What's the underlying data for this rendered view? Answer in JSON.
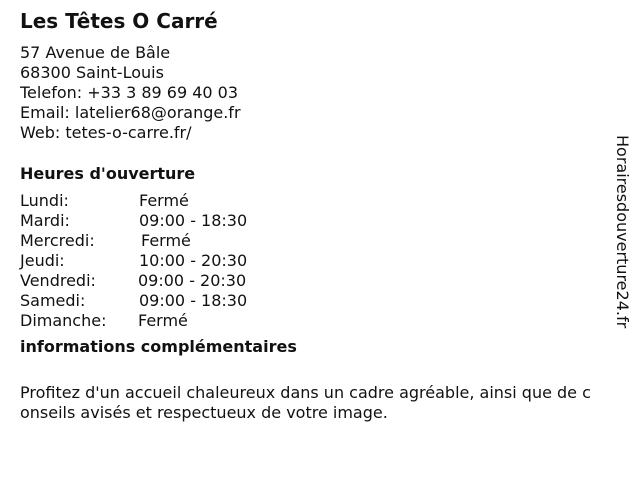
{
  "business": {
    "name": "Les Têtes O Carré",
    "address_line1": "57 Avenue de Bâle",
    "address_line2": "68300 Saint-Louis",
    "phone": "Telefon: +33 3 89 69 40 03",
    "email": "Email: latelier68@orange.fr",
    "web": "Web: tetes-o-carre.fr/"
  },
  "hours": {
    "heading": "Heures d'ouverture",
    "days": [
      {
        "day": "Lundi:",
        "time": "Fermé"
      },
      {
        "day": "Mardi:",
        "time": "09:00 - 18:30"
      },
      {
        "day": "Mercredi:",
        "time": "Fermé"
      },
      {
        "day": "Jeudi:",
        "time": "10:00 - 20:30"
      },
      {
        "day": "Vendredi:",
        "time": "09:00 - 20:30"
      },
      {
        "day": "Samedi:",
        "time": "09:00 - 18:30"
      },
      {
        "day": "Dimanche:",
        "time": "Fermé"
      }
    ]
  },
  "info": {
    "heading": "informations complémentaires",
    "text": "Profitez d'un accueil chaleureux dans un cadre agréable, ainsi que de conseils avisés et respectueux de votre image."
  },
  "watermark": "Horairesdouverture24.fr"
}
